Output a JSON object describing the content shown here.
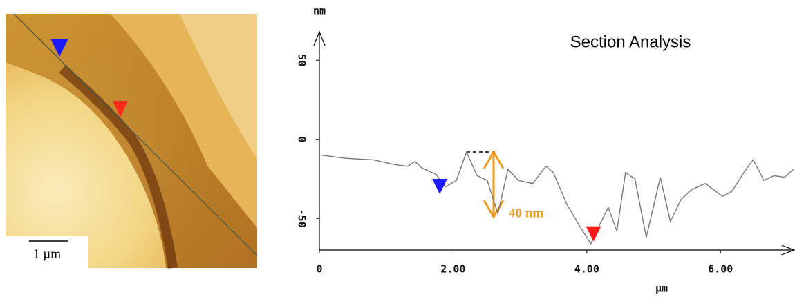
{
  "scale_bar": "1 µm",
  "chart_data": {
    "type": "line",
    "title": "Section Analysis",
    "y_label": "nm",
    "x_label": "µm",
    "annotation": "40 nm",
    "xlim": [
      0,
      7.1
    ],
    "ylim": [
      -70,
      68
    ],
    "xticks": [
      0,
      {
        "value": 2,
        "label": "2.00"
      },
      {
        "value": 4,
        "label": "4.00"
      },
      {
        "value": 6,
        "label": "6.00"
      }
    ],
    "yticks": [
      50,
      0,
      -50
    ],
    "series": [
      {
        "color": "#777777",
        "x": [
          0.03,
          0.39,
          0.81,
          1.12,
          1.32,
          1.43,
          1.53,
          1.74,
          1.89,
          2.05,
          2.2,
          2.36,
          2.51,
          2.67,
          2.82,
          2.98,
          3.19,
          3.39,
          3.5,
          3.7,
          3.91,
          4.06,
          4.17,
          4.32,
          4.45,
          4.58,
          4.72,
          4.89,
          5.1,
          5.25,
          5.41,
          5.56,
          5.77,
          6.03,
          6.17,
          6.38,
          6.49,
          6.65,
          6.8,
          6.96,
          7.09
        ],
        "values": [
          -10,
          -12,
          -13,
          -16,
          -17,
          -14,
          -18,
          -22,
          -30,
          -26,
          -8,
          -23,
          -26,
          -47,
          -19,
          -26,
          -28,
          -17,
          -21,
          -41,
          -56,
          -66,
          -56,
          -43,
          -58,
          -21,
          -25,
          -62,
          -24,
          -52,
          -38,
          -32,
          -28,
          -36,
          -33,
          -19,
          -13,
          -26,
          -23,
          -24,
          -19
        ]
      }
    ],
    "cursors": [
      {
        "x": 1.8,
        "y": -32,
        "color": "#1a1aff"
      },
      {
        "x": 4.1,
        "y": -62,
        "color": "#ff1a1a"
      }
    ]
  }
}
